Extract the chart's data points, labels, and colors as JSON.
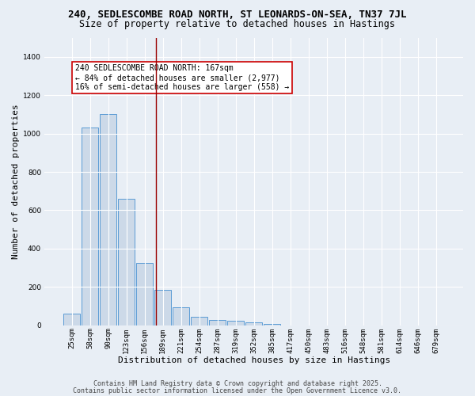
{
  "title_line1": "240, SEDLESCOMBE ROAD NORTH, ST LEONARDS-ON-SEA, TN37 7JL",
  "title_line2": "Size of property relative to detached houses in Hastings",
  "xlabel": "Distribution of detached houses by size in Hastings",
  "ylabel": "Number of detached properties",
  "bar_labels": [
    "25sqm",
    "58sqm",
    "90sqm",
    "123sqm",
    "156sqm",
    "189sqm",
    "221sqm",
    "254sqm",
    "287sqm",
    "319sqm",
    "352sqm",
    "385sqm",
    "417sqm",
    "450sqm",
    "483sqm",
    "516sqm",
    "548sqm",
    "581sqm",
    "614sqm",
    "646sqm",
    "679sqm"
  ],
  "bar_values": [
    62,
    1030,
    1100,
    660,
    325,
    185,
    95,
    45,
    30,
    22,
    15,
    8,
    0,
    0,
    0,
    0,
    0,
    0,
    0,
    0,
    0
  ],
  "bar_color": "#ccd9e8",
  "bar_edge_color": "#5b9bd5",
  "red_line_x": 4.62,
  "red_line_color": "#990000",
  "annotation_text": "240 SEDLESCOMBE ROAD NORTH: 167sqm\n← 84% of detached houses are smaller (2,977)\n16% of semi-detached houses are larger (558) →",
  "annotation_box_color": "white",
  "annotation_edge_color": "#cc0000",
  "ylim": [
    0,
    1500
  ],
  "yticks": [
    0,
    200,
    400,
    600,
    800,
    1000,
    1200,
    1400
  ],
  "footnote1": "Contains HM Land Registry data © Crown copyright and database right 2025.",
  "footnote2": "Contains public sector information licensed under the Open Government Licence v3.0.",
  "bg_color": "#e8eef5",
  "grid_color": "white",
  "title_fontsize": 9,
  "subtitle_fontsize": 8.5,
  "label_fontsize": 8,
  "tick_fontsize": 6.5,
  "annotation_fontsize": 7,
  "footnote_fontsize": 6
}
